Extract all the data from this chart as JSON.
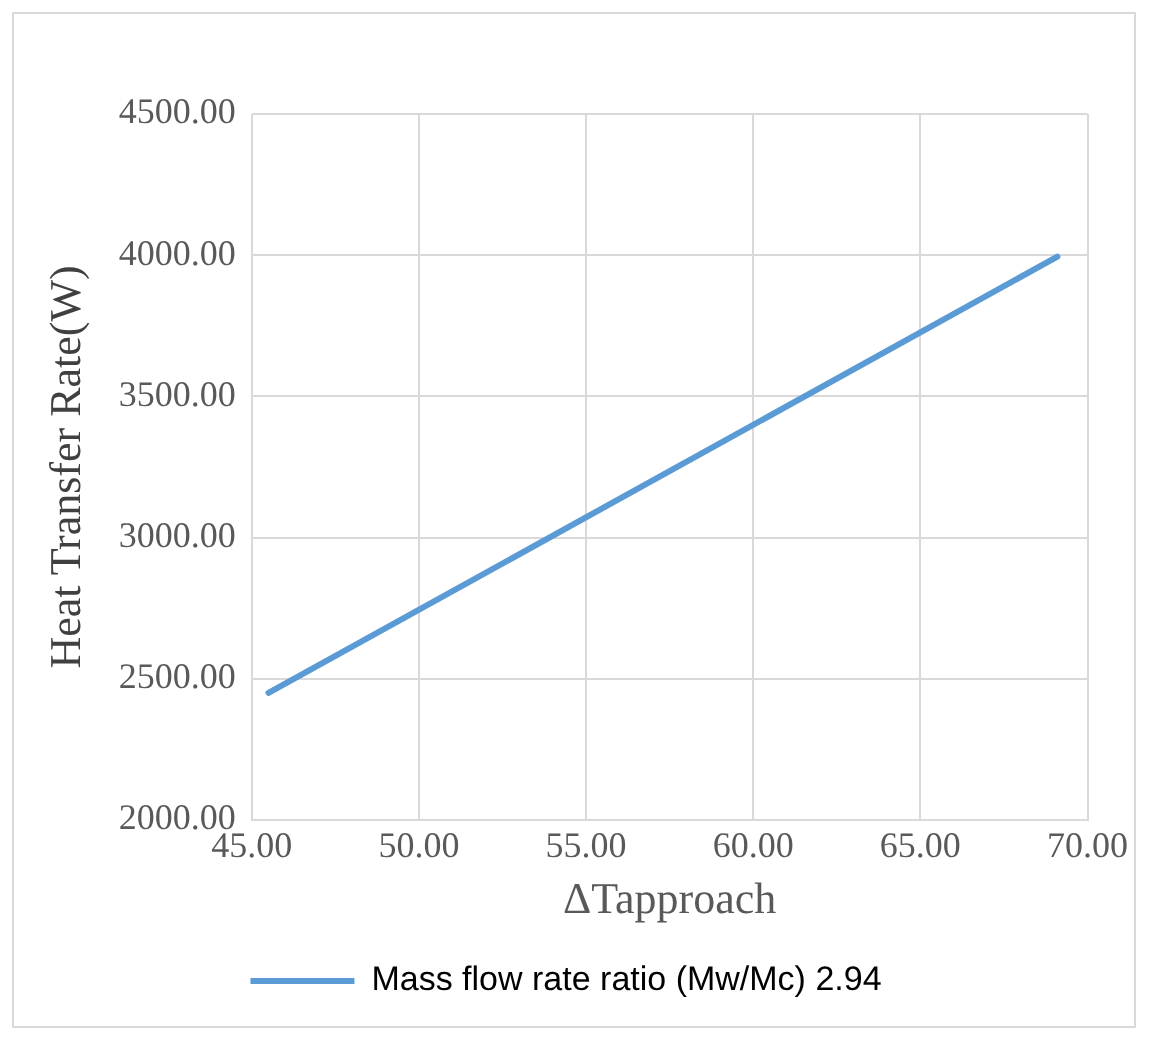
{
  "chart_data": {
    "type": "line",
    "xlabel": "ΔTapproach",
    "ylabel": "Heat Transfer Rate(W)",
    "series": [
      {
        "name": "Mass flow rate ratio (Mw/Mc) 2.94",
        "color": "#5b9bd5",
        "x": [
          45.5,
          69.1
        ],
        "values": [
          2450,
          3995
        ]
      }
    ],
    "xlim": [
      45,
      70
    ],
    "xticks": [
      {
        "value": 45,
        "label": "45.00"
      },
      {
        "value": 50,
        "label": "50.00"
      },
      {
        "value": 55,
        "label": "55.00"
      },
      {
        "value": 60,
        "label": "60.00"
      },
      {
        "value": 65,
        "label": "65.00"
      },
      {
        "value": 70,
        "label": "70.00"
      }
    ],
    "ylim": [
      2000,
      4500
    ],
    "yticks": [
      {
        "value": 2000,
        "label": "2000.00"
      },
      {
        "value": 2500,
        "label": "2500.00"
      },
      {
        "value": 3000,
        "label": "3000.00"
      },
      {
        "value": 3500,
        "label": "3500.00"
      },
      {
        "value": 4000,
        "label": "4000.00"
      },
      {
        "value": 4500,
        "label": "4500.00"
      }
    ],
    "grid": true,
    "legend": "bottom",
    "marker": "none",
    "line_style": "solid"
  }
}
